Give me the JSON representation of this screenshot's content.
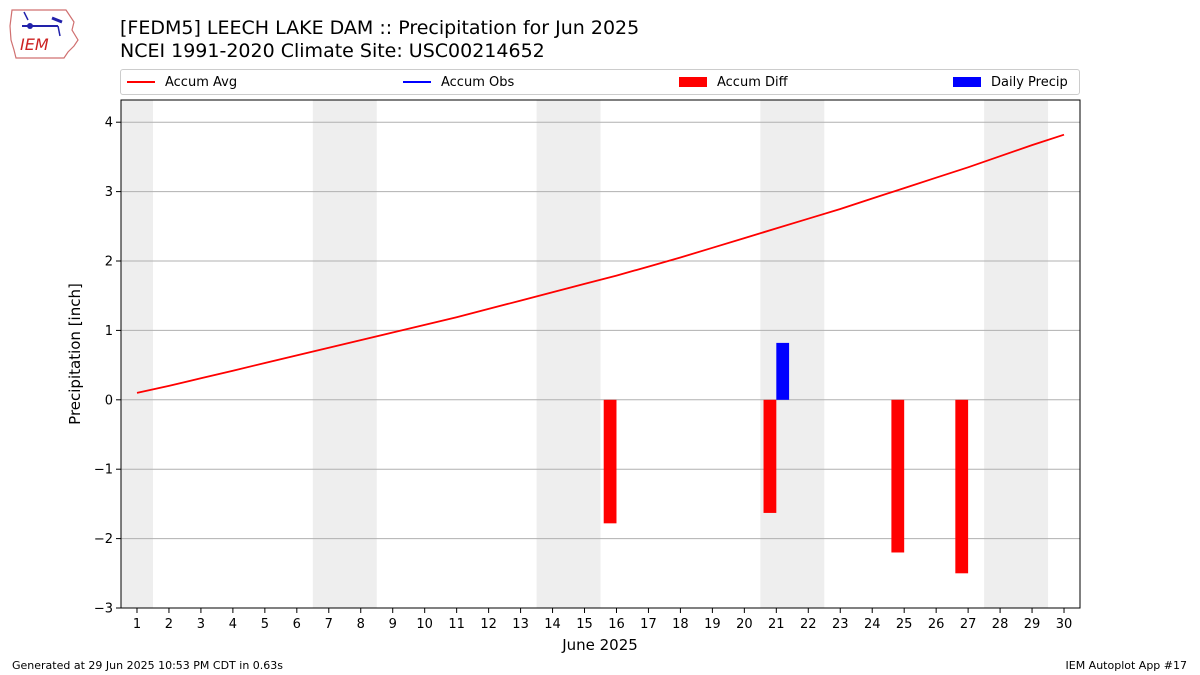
{
  "header": {
    "title_line1": "[FEDM5] LEECH LAKE DAM :: Precipitation for Jun 2025",
    "title_line2": "NCEI 1991-2020 Climate Site: USC00214652",
    "logo_text": "IEM"
  },
  "footer": {
    "generated": "Generated at 29 Jun 2025 10:53 PM CDT in 0.63s",
    "app": "IEM Autoplot App #17"
  },
  "legend": [
    {
      "label": "Accum Avg",
      "kind": "line",
      "color": "#ff0000"
    },
    {
      "label": "Accum Obs",
      "kind": "line",
      "color": "#0000ff"
    },
    {
      "label": "Accum Diff",
      "kind": "box",
      "color": "#ff0000"
    },
    {
      "label": "Daily Precip",
      "kind": "box",
      "color": "#0000ff"
    }
  ],
  "chart_data": {
    "type": "bar",
    "xlabel": "June 2025",
    "ylabel": "Precipitation [inch]",
    "xlim": [
      0.5,
      30.5
    ],
    "ylim": [
      -3,
      4.32
    ],
    "yticks": [
      -3,
      -2,
      -1,
      0,
      1,
      2,
      3,
      4
    ],
    "ytick_labels": [
      "−3",
      "−2",
      "−1",
      "0",
      "1",
      "2",
      "3",
      "4"
    ],
    "x": [
      1,
      2,
      3,
      4,
      5,
      6,
      7,
      8,
      9,
      10,
      11,
      12,
      13,
      14,
      15,
      16,
      17,
      18,
      19,
      20,
      21,
      22,
      23,
      24,
      25,
      26,
      27,
      28,
      29,
      30
    ],
    "grid": "horizontal",
    "weekend_shading": [
      [
        0.5,
        1.5
      ],
      [
        6.5,
        8.5
      ],
      [
        13.5,
        15.5
      ],
      [
        20.5,
        22.5
      ],
      [
        27.5,
        29.5
      ]
    ],
    "weekend_color": "#eeeeee",
    "series": [
      {
        "name": "Accum Avg",
        "kind": "line",
        "color": "#ff0000",
        "values": [
          0.1,
          0.2,
          0.31,
          0.42,
          0.53,
          0.64,
          0.75,
          0.86,
          0.97,
          1.08,
          1.19,
          1.31,
          1.43,
          1.55,
          1.67,
          1.79,
          1.92,
          2.05,
          2.19,
          2.33,
          2.47,
          2.61,
          2.75,
          2.9,
          3.05,
          3.2,
          3.35,
          3.51,
          3.67,
          3.82
        ]
      },
      {
        "name": "Accum Diff",
        "kind": "bar",
        "color": "#ff0000",
        "points": [
          [
            16,
            -1.78
          ],
          [
            21,
            -1.63
          ],
          [
            25,
            -2.2
          ],
          [
            27,
            -2.5
          ]
        ]
      },
      {
        "name": "Daily Precip",
        "kind": "bar",
        "color": "#0000ff",
        "points": [
          [
            21,
            0.82
          ]
        ]
      }
    ]
  }
}
